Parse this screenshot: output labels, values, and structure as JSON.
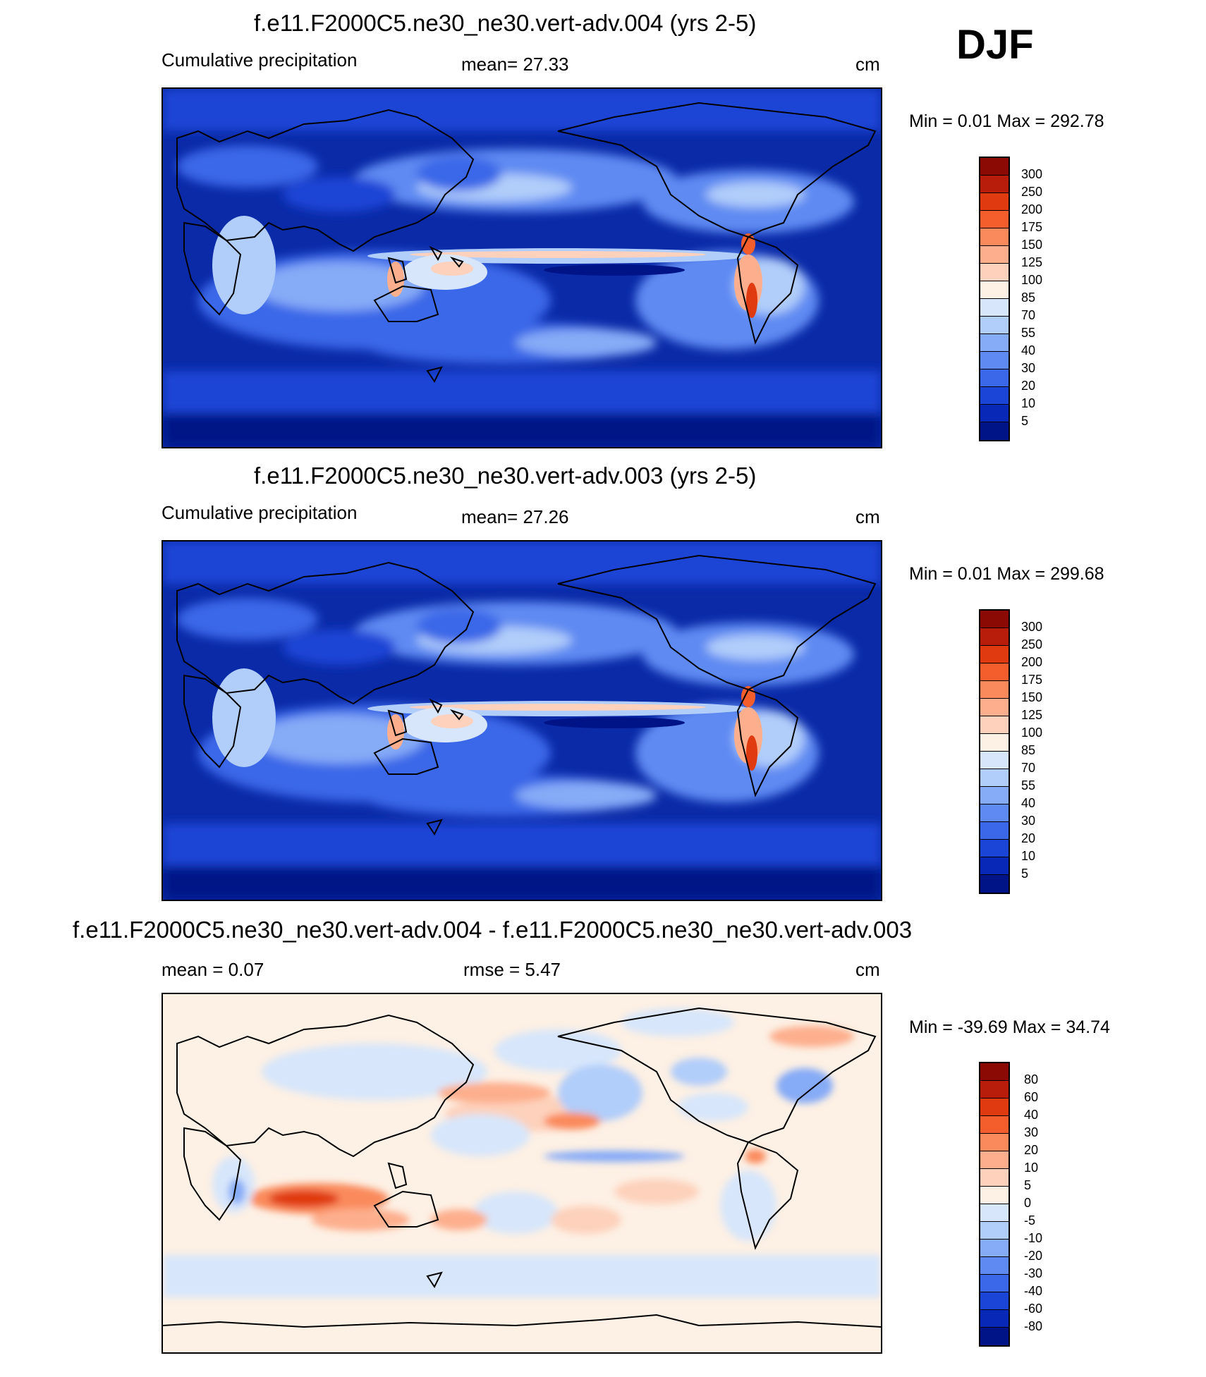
{
  "season": "DJF",
  "panels": [
    {
      "title": "f.e11.F2000C5.ne30_ne30.vert-adv.004 (yrs 2-5)",
      "left_text": "Cumulative precipitation",
      "center_text": "mean=  27.33",
      "units": "cm",
      "minmax": "Min =    0.01 Max = 292.78",
      "colorbar": {
        "labels": [
          "300",
          "250",
          "200",
          "175",
          "150",
          "125",
          "100",
          "85",
          "70",
          "55",
          "40",
          "30",
          "20",
          "10",
          "5"
        ],
        "colors": [
          "#8c0a04",
          "#b81c0a",
          "#e03a10",
          "#f45e2c",
          "#fa8a5c",
          "#fdaf8d",
          "#fdd1bc",
          "#fdf0e4",
          "#d7e6fb",
          "#b1cdfa",
          "#86abf7",
          "#5e8af2",
          "#3a68e8",
          "#1a45d6",
          "#0829b7",
          "#001487"
        ]
      }
    },
    {
      "title": "f.e11.F2000C5.ne30_ne30.vert-adv.003 (yrs 2-5)",
      "left_text": "Cumulative precipitation",
      "center_text": "mean=  27.26",
      "units": "cm",
      "minmax": "Min =    0.01 Max = 299.68",
      "colorbar": {
        "labels": [
          "300",
          "250",
          "200",
          "175",
          "150",
          "125",
          "100",
          "85",
          "70",
          "55",
          "40",
          "30",
          "20",
          "10",
          "5"
        ],
        "colors": [
          "#8c0a04",
          "#b81c0a",
          "#e03a10",
          "#f45e2c",
          "#fa8a5c",
          "#fdaf8d",
          "#fdd1bc",
          "#fdf0e4",
          "#d7e6fb",
          "#b1cdfa",
          "#86abf7",
          "#5e8af2",
          "#3a68e8",
          "#1a45d6",
          "#0829b7",
          "#001487"
        ]
      }
    },
    {
      "title": "f.e11.F2000C5.ne30_ne30.vert-adv.004 - f.e11.F2000C5.ne30_ne30.vert-adv.003",
      "left_text": "mean =    0.07",
      "center_text": "rmse =    5.47",
      "units": "cm",
      "minmax": "Min = -39.69 Max =  34.74",
      "colorbar": {
        "labels": [
          "80",
          "60",
          "40",
          "30",
          "20",
          "10",
          "5",
          "0",
          "-5",
          "-10",
          "-20",
          "-30",
          "-40",
          "-60",
          "-80"
        ],
        "colors": [
          "#8c0a04",
          "#b81c0a",
          "#e03a10",
          "#f45e2c",
          "#fa8a5c",
          "#fdaf8d",
          "#fdd1bc",
          "#fdf0e4",
          "#d7e6fb",
          "#b1cdfa",
          "#86abf7",
          "#5e8af2",
          "#3a68e8",
          "#1a45d6",
          "#0829b7",
          "#001487"
        ]
      }
    }
  ]
}
